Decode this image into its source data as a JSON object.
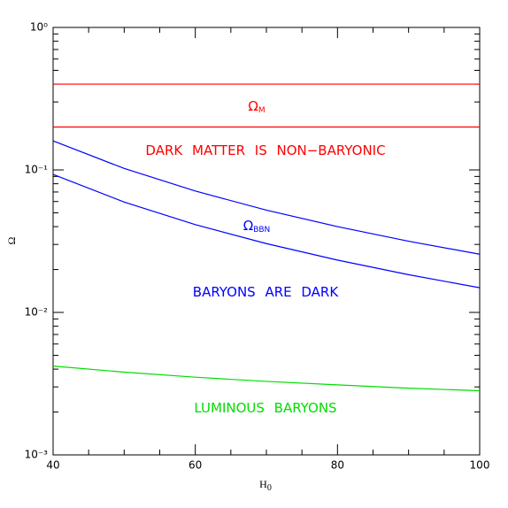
{
  "chart_data": {
    "type": "line",
    "xlabel": {
      "text": "H",
      "sub": "0"
    },
    "ylabel": "Ω",
    "x": [
      40,
      50,
      60,
      70,
      80,
      90,
      100
    ],
    "series": [
      {
        "color": "#ff0000",
        "values": [
          0.4,
          0.4,
          0.4,
          0.4,
          0.4,
          0.4,
          0.4
        ]
      },
      {
        "color": "#ff0000",
        "values": [
          0.2,
          0.2,
          0.2,
          0.2,
          0.2,
          0.2,
          0.2
        ]
      },
      {
        "color": "#0000ff",
        "values": [
          0.16,
          0.1024,
          0.0711,
          0.0522,
          0.04,
          0.0316,
          0.0256
        ]
      },
      {
        "color": "#0000ff",
        "values": [
          0.093,
          0.0595,
          0.0413,
          0.0304,
          0.0233,
          0.0184,
          0.0149
        ]
      },
      {
        "color": "#00dd00",
        "values": [
          0.0042,
          0.00381,
          0.00351,
          0.00328,
          0.0031,
          0.00294,
          0.00282
        ]
      }
    ],
    "annotations": [
      {
        "text": "Ω",
        "sub": "M",
        "color": "#ff0000"
      },
      {
        "text": "DARK MATTER IS NON−BARYONIC",
        "color": "#ff0000"
      },
      {
        "text": "Ω",
        "sub": "BBN",
        "color": "#0000ff"
      },
      {
        "text": "BARYONS ARE DARK",
        "color": "#0000ff"
      },
      {
        "text": "LUMINOUS BARYONS",
        "color": "#00dd00"
      }
    ],
    "xlim": [
      40,
      100
    ],
    "xticks": [
      40,
      60,
      80,
      100
    ],
    "ylim": [
      0.001,
      1
    ],
    "log_y": true,
    "yticks": [
      {
        "value": 0.001,
        "label": "10⁻³"
      },
      {
        "value": 0.01,
        "label": "10⁻²"
      },
      {
        "value": 0.1,
        "label": "10⁻¹"
      },
      {
        "value": 1,
        "label": "10⁰"
      }
    ]
  }
}
